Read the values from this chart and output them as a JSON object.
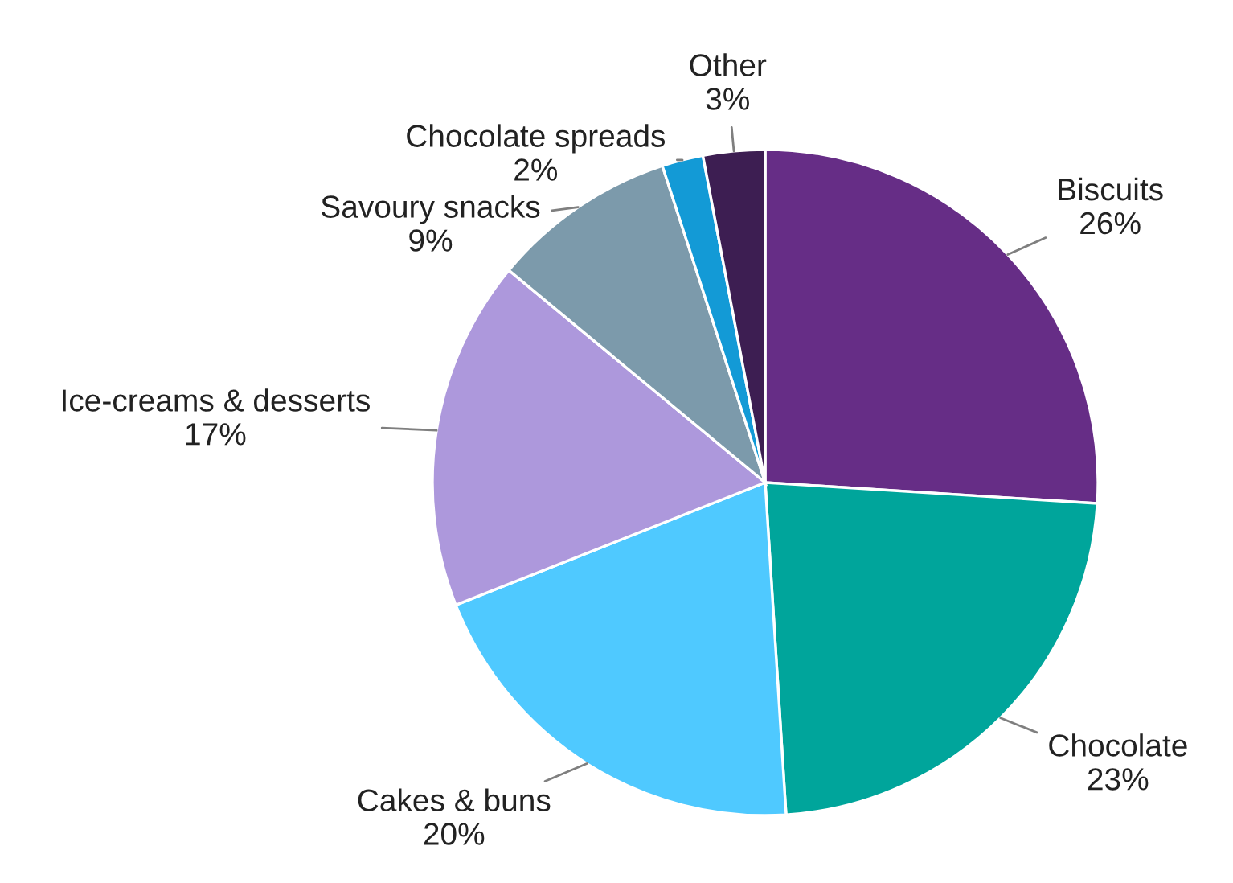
{
  "chart_data": {
    "type": "pie",
    "categories": [
      "Biscuits",
      "Chocolate",
      "Cakes & buns",
      "Ice-creams & desserts",
      "Savoury snacks",
      "Chocolate spreads",
      "Other"
    ],
    "values": [
      26,
      23,
      20,
      17,
      9,
      2,
      3
    ],
    "value_labels": [
      "26%",
      "23%",
      "20%",
      "17%",
      "9%",
      "2%",
      "3%"
    ],
    "colors": [
      "#662d86",
      "#00a59b",
      "#4fc9ff",
      "#ad98dc",
      "#7c9aab",
      "#139ad6",
      "#3d1e52"
    ]
  }
}
